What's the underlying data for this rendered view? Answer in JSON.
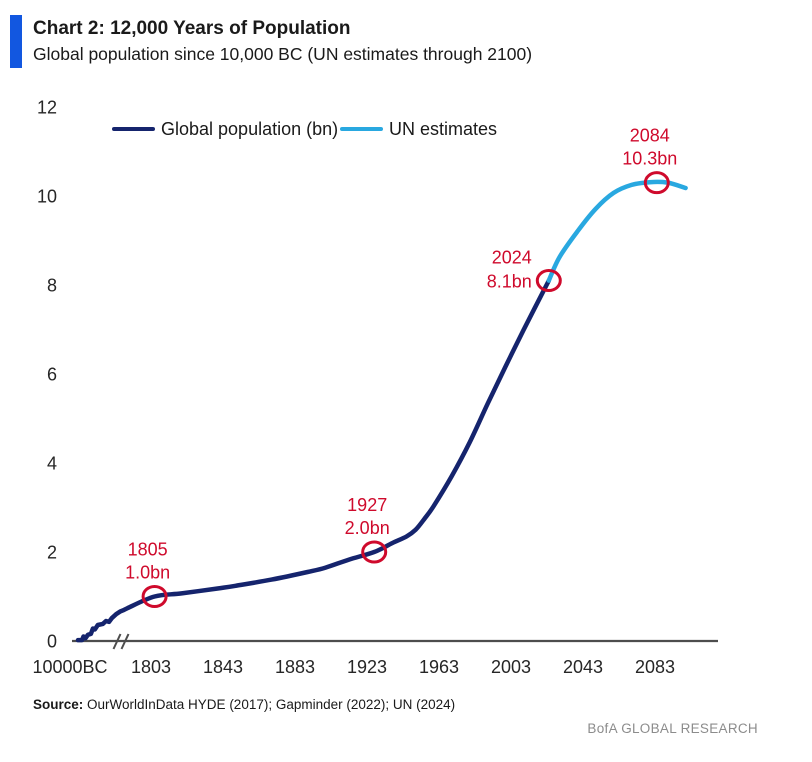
{
  "header": {
    "title": "Chart 2: 12,000 Years of Population",
    "subtitle": "Global population since 10,000 BC (UN estimates through 2100)",
    "accent_color": "#1257e0"
  },
  "source": {
    "label": "Source:",
    "text": " OurWorldInData HYDE (2017); Gapminder (2022); UN (2024)"
  },
  "footer": {
    "brand": "BofA GLOBAL RESEARCH"
  },
  "colors": {
    "population_line": "#15246d",
    "un_estimates_line": "#29a8e0",
    "annotation_red": "#cf0a2c",
    "axis": "#4d4d4d",
    "tick_text": "#262626"
  },
  "chart_data": {
    "type": "line",
    "title": "Chart 2: 12,000 Years of Population",
    "subtitle": "Global population since 10,000 BC (UN estimates through 2100)",
    "xlabel": "",
    "ylabel": "Global population (bn)",
    "ylim": [
      0,
      12
    ],
    "yticks": [
      0,
      2,
      4,
      6,
      8,
      10,
      12
    ],
    "xticks": [
      {
        "label": "10000BC",
        "year": null
      },
      {
        "label": "1803",
        "year": 1803
      },
      {
        "label": "1843",
        "year": 1843
      },
      {
        "label": "1883",
        "year": 1883
      },
      {
        "label": "1923",
        "year": 1923
      },
      {
        "label": "1963",
        "year": 1963
      },
      {
        "label": "2003",
        "year": 2003
      },
      {
        "label": "2043",
        "year": 2043
      },
      {
        "label": "2083",
        "year": 2083
      }
    ],
    "axis_break_before": 1803,
    "grid": false,
    "legend_position": "top-left",
    "legend": [
      {
        "label": "Global population (bn)",
        "color": "#15246d"
      },
      {
        "label": "UN estimates",
        "color": "#29a8e0"
      }
    ],
    "series": [
      {
        "name": "Global population (bn)",
        "color": "#15246d",
        "ancient_zone_note": "compressed broken-axis zone 10,000 BC to ~1790 AD; x = fraction across zone, y = population bn",
        "ancient_points": [
          [
            0.0,
            0.02
          ],
          [
            0.08,
            0.02
          ],
          [
            0.11,
            0.1
          ],
          [
            0.15,
            0.06
          ],
          [
            0.2,
            0.14
          ],
          [
            0.26,
            0.16
          ],
          [
            0.3,
            0.28
          ],
          [
            0.34,
            0.26
          ],
          [
            0.4,
            0.36
          ],
          [
            0.5,
            0.385
          ],
          [
            0.565,
            0.45
          ],
          [
            0.625,
            0.43
          ],
          [
            0.685,
            0.52
          ],
          [
            0.766,
            0.6
          ],
          [
            0.847,
            0.66
          ],
          [
            0.927,
            0.7
          ],
          [
            1.0,
            0.74
          ]
        ],
        "points": [
          [
            1790,
            0.74
          ],
          [
            1805,
            1.0
          ],
          [
            1820,
            1.07
          ],
          [
            1840,
            1.18
          ],
          [
            1850,
            1.24
          ],
          [
            1870,
            1.38
          ],
          [
            1890,
            1.55
          ],
          [
            1900,
            1.65
          ],
          [
            1913,
            1.83
          ],
          [
            1927,
            2.0
          ],
          [
            1937,
            2.2
          ],
          [
            1945,
            2.35
          ],
          [
            1950,
            2.5
          ],
          [
            1955,
            2.75
          ],
          [
            1960,
            3.03
          ],
          [
            1970,
            3.7
          ],
          [
            1980,
            4.46
          ],
          [
            1990,
            5.33
          ],
          [
            2000,
            6.17
          ],
          [
            2010,
            6.99
          ],
          [
            2024,
            8.1
          ]
        ]
      },
      {
        "name": "UN estimates",
        "color": "#29a8e0",
        "points": [
          [
            2024,
            8.1
          ],
          [
            2030,
            8.63
          ],
          [
            2040,
            9.21
          ],
          [
            2050,
            9.71
          ],
          [
            2060,
            10.07
          ],
          [
            2070,
            10.25
          ],
          [
            2080,
            10.31
          ],
          [
            2090,
            10.3
          ],
          [
            2100,
            10.18
          ]
        ]
      }
    ],
    "annotations": [
      {
        "year_label": "1805",
        "value_label": "1.0bn",
        "year": 1805,
        "value": 1.0,
        "placement": "above"
      },
      {
        "year_label": "1927",
        "value_label": "2.0bn",
        "year": 1927,
        "value": 2.0,
        "placement": "above"
      },
      {
        "year_label": "2024",
        "value_label": "8.1bn",
        "year": 2024,
        "value": 8.1,
        "placement": "left"
      },
      {
        "year_label": "2084",
        "value_label": "10.3bn",
        "year": 2084,
        "value": 10.3,
        "placement": "above"
      }
    ],
    "annotation_color": "#cf0a2c"
  }
}
